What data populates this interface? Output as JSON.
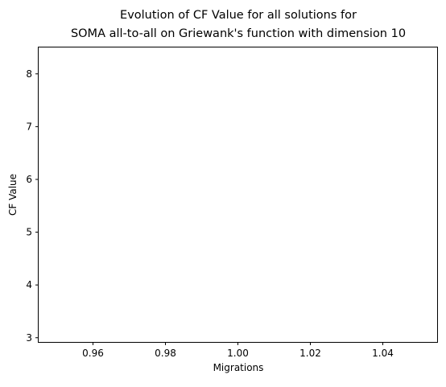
{
  "chart_data": {
    "type": "scatter",
    "title_lines": [
      "Evolution of CF Value for all solutions for",
      "SOMA all-to-all on Griewank's function with dimension 10"
    ],
    "xlabel": "Migrations",
    "ylabel": "CF Value",
    "xlim": [
      0.945,
      1.055
    ],
    "ylim": [
      2.92,
      8.5
    ],
    "x_ticks": [
      0.96,
      0.98,
      1.0,
      1.02,
      1.04
    ],
    "x_tick_labels": [
      "0.96",
      "0.98",
      "1.00",
      "1.02",
      "1.04"
    ],
    "y_ticks": [
      3,
      4,
      5,
      6,
      7,
      8
    ],
    "y_tick_labels": [
      "3",
      "4",
      "5",
      "6",
      "7",
      "8"
    ],
    "grid": false,
    "series": [
      {
        "x": [],
        "y": []
      }
    ],
    "colors": {
      "axis": "#000000",
      "background": "#ffffff"
    }
  }
}
